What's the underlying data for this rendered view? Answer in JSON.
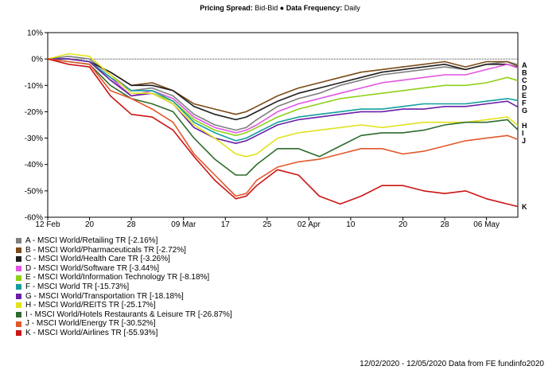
{
  "header": {
    "spread_label": "Pricing Spread:",
    "spread_value": "Bid-Bid",
    "separator": "●",
    "frequency_label": "Data Frequency:",
    "frequency_value": "Daily"
  },
  "footer": {
    "text": "12/02/2020 - 12/05/2020 Data from FE fundinfo2020"
  },
  "chart_data": {
    "type": "line",
    "title": "",
    "xlabel": "",
    "ylabel": "",
    "ylim": [
      -60,
      10
    ],
    "yticks": [
      "10%",
      "0%",
      "-10%",
      "-20%",
      "-30%",
      "-40%",
      "-50%",
      "-60%"
    ],
    "xticks": [
      {
        "day": 0,
        "label": "12 Feb"
      },
      {
        "day": 8,
        "label": "20"
      },
      {
        "day": 16,
        "label": "28"
      },
      {
        "day": 26,
        "label": "09 Mar"
      },
      {
        "day": 34,
        "label": "17"
      },
      {
        "day": 42,
        "label": "25"
      },
      {
        "day": 50,
        "label": "02 Apr"
      },
      {
        "day": 58,
        "label": "10"
      },
      {
        "day": 68,
        "label": "20"
      },
      {
        "day": 76,
        "label": "28"
      },
      {
        "day": 84,
        "label": "06 May"
      }
    ],
    "x_days": [
      0,
      4,
      8,
      12,
      16,
      20,
      24,
      28,
      32,
      36,
      38,
      40,
      44,
      48,
      52,
      56,
      60,
      64,
      68,
      72,
      76,
      80,
      84,
      88,
      90
    ],
    "grid": false,
    "legend_position": "bottom-left",
    "series": [
      {
        "letter": "A",
        "name": "A - MSCI World/Retailing TR [-2.16%]",
        "color": "#7f7f7f",
        "values": [
          0,
          1,
          0,
          -6,
          -12,
          -11,
          -14,
          -21,
          -25,
          -27,
          -26,
          -23,
          -18,
          -15,
          -13,
          -10,
          -8,
          -6,
          -5,
          -4,
          -3,
          -4,
          -2,
          -1,
          -2.16
        ]
      },
      {
        "letter": "B",
        "name": "B - MSCI World/Pharmaceuticals TR [-2.72%]",
        "color": "#7b4a17",
        "values": [
          0,
          0,
          -1,
          -5,
          -10,
          -9,
          -12,
          -17,
          -19,
          -21,
          -20,
          -18,
          -14,
          -11,
          -9,
          -7,
          -5,
          -4,
          -3,
          -2,
          -1,
          -3,
          -1,
          -1,
          -2.72
        ]
      },
      {
        "letter": "C",
        "name": "C - MSCI World/Health Care TR [-3.26%]",
        "color": "#1f1f1f",
        "values": [
          0,
          0,
          -1,
          -5,
          -10,
          -10,
          -12,
          -18,
          -21,
          -23,
          -22,
          -20,
          -16,
          -13,
          -11,
          -9,
          -7,
          -5,
          -4,
          -3,
          -2,
          -4,
          -2,
          -2,
          -3.26
        ]
      },
      {
        "letter": "D",
        "name": "D - MSCI World/Software TR [-3.44%]",
        "color": "#e354e3",
        "values": [
          0,
          0,
          -1,
          -7,
          -14,
          -12,
          -15,
          -22,
          -26,
          -28,
          -27,
          -25,
          -20,
          -17,
          -15,
          -13,
          -11,
          -9,
          -8,
          -7,
          -6,
          -6,
          -4,
          -2,
          -3.44
        ]
      },
      {
        "letter": "E",
        "name": "E - MSCI World/Information Technology TR [-8.18%]",
        "color": "#8ed01a",
        "values": [
          0,
          0,
          -1,
          -8,
          -14,
          -13,
          -16,
          -23,
          -27,
          -29,
          -28,
          -26,
          -22,
          -19,
          -17,
          -15,
          -14,
          -13,
          -12,
          -11,
          -10,
          -10,
          -9,
          -7,
          -8.18
        ]
      },
      {
        "letter": "F",
        "name": "F - MSCI World TR [-15.73%]",
        "color": "#129e9e",
        "values": [
          0,
          0,
          -1,
          -7,
          -12,
          -12,
          -16,
          -24,
          -28,
          -31,
          -30,
          -28,
          -24,
          -22,
          -21,
          -20,
          -19,
          -19,
          -18,
          -17,
          -17,
          -17,
          -16,
          -15,
          -15.73
        ]
      },
      {
        "letter": "G",
        "name": "G - MSCI World/Transportation TR [-18.18%]",
        "color": "#6a1fa8",
        "values": [
          0,
          0,
          -1,
          -8,
          -14,
          -13,
          -17,
          -26,
          -30,
          -32,
          -31,
          -29,
          -25,
          -23,
          -22,
          -21,
          -20,
          -20,
          -19,
          -19,
          -18,
          -18,
          -17,
          -16,
          -18.18
        ]
      },
      {
        "letter": "H",
        "name": "H - MSCI World/REITS TR [-25.17%]",
        "color": "#e2e21c",
        "values": [
          0,
          2,
          1,
          -6,
          -13,
          -13,
          -17,
          -25,
          -30,
          -36,
          -37,
          -36,
          -30,
          -28,
          -27,
          -26,
          -25,
          -26,
          -25,
          -24,
          -24,
          -24,
          -23,
          -22,
          -25.17
        ]
      },
      {
        "letter": "I",
        "name": "I - MSCI World/Hotels Restaurants & Leisure TR [-26.87%]",
        "color": "#2e6b2e",
        "values": [
          0,
          -1,
          -2,
          -10,
          -15,
          -17,
          -20,
          -30,
          -38,
          -44,
          -44,
          -40,
          -34,
          -34,
          -37,
          -33,
          -29,
          -28,
          -28,
          -27,
          -25,
          -24,
          -24,
          -23,
          -26.87
        ]
      },
      {
        "letter": "J",
        "name": "J - MSCI World/Energy TR [-30.52%]",
        "color": "#e2582c",
        "values": [
          0,
          -1,
          -2,
          -12,
          -15,
          -19,
          -24,
          -36,
          -44,
          -52,
          -51,
          -46,
          -41,
          -39,
          -38,
          -36,
          -34,
          -34,
          -36,
          -35,
          -33,
          -31,
          -30,
          -29,
          -30.52
        ]
      },
      {
        "letter": "K",
        "name": "K - MSCI World/Airlines TR [-55.93%]",
        "color": "#cc1414",
        "values": [
          0,
          -2,
          -3,
          -14,
          -21,
          -22,
          -27,
          -37,
          -46,
          -53,
          -52,
          -48,
          -42,
          -44,
          -52,
          -55,
          -52,
          -48,
          -48,
          -50,
          -51,
          -50,
          -53,
          -55,
          -55.93
        ]
      }
    ]
  }
}
